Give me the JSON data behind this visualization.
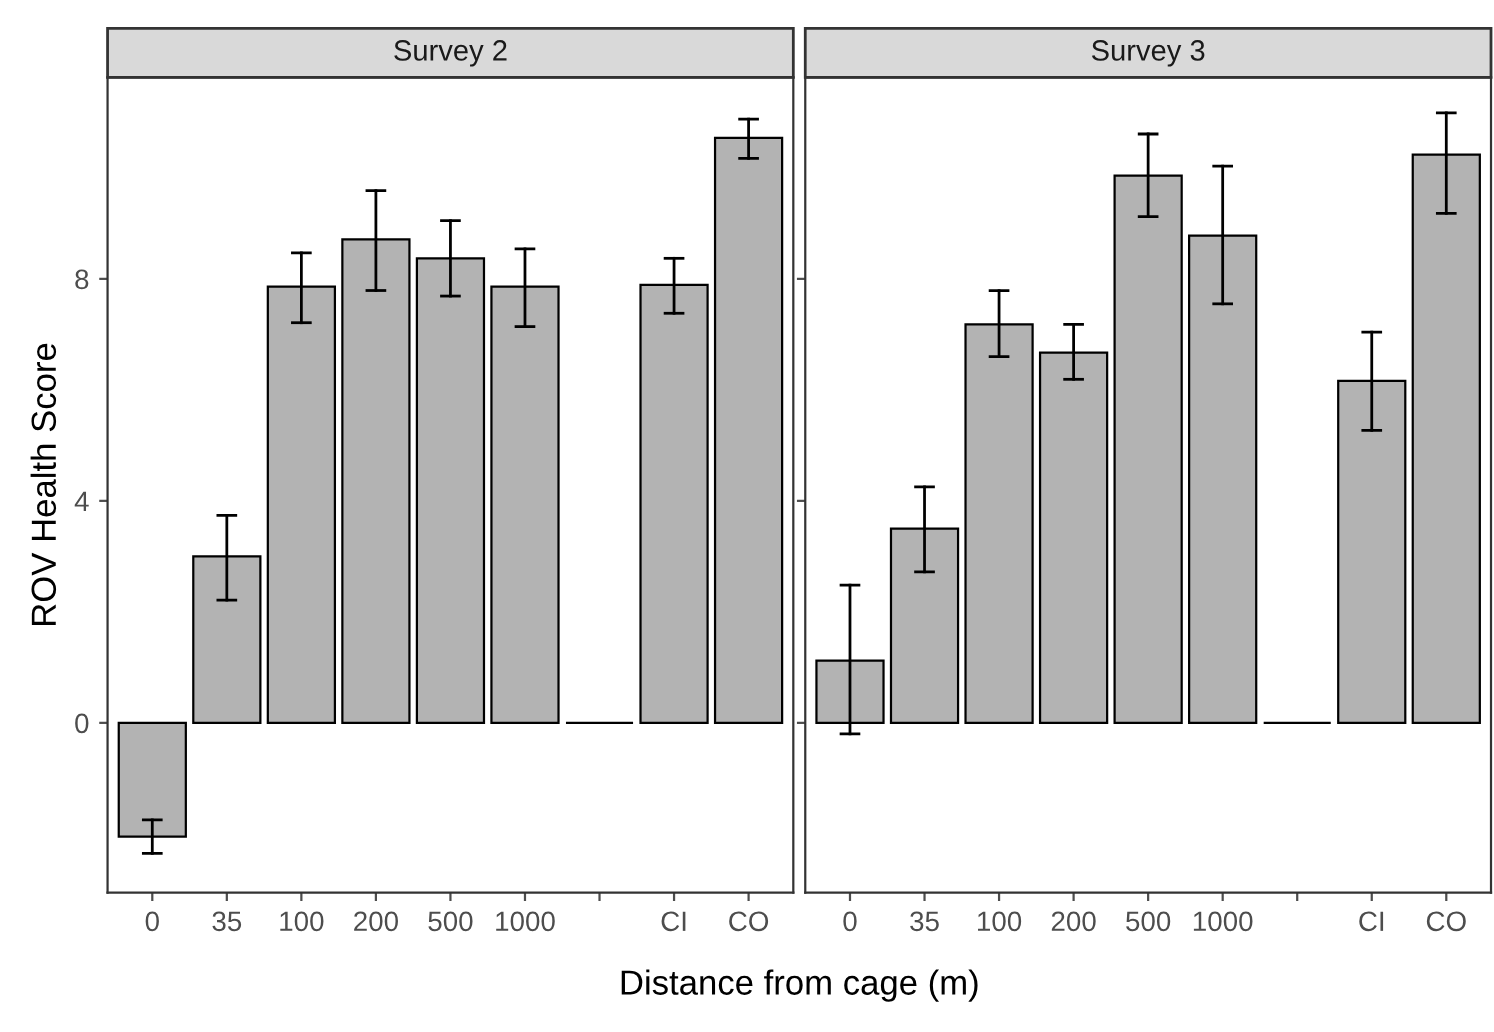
{
  "chart_data": [
    {
      "type": "bar",
      "title": "Survey 2",
      "xlabel": "Distance from cage (m)",
      "ylabel": "ROV Health Score",
      "categories": [
        "0",
        "35",
        "100",
        "200",
        "500",
        "1000",
        null,
        "CI",
        "CO"
      ],
      "values": [
        -2.05,
        3.0,
        7.86,
        8.71,
        8.37,
        7.86,
        0,
        7.89,
        10.54
      ],
      "errors": [
        [
          -2.35,
          -1.75
        ],
        [
          2.21,
          3.74
        ],
        [
          7.21,
          8.47
        ],
        [
          7.79,
          9.59
        ],
        [
          7.69,
          9.05
        ],
        [
          7.14,
          8.54
        ],
        null,
        [
          7.38,
          8.37
        ],
        [
          10.17,
          10.88
        ]
      ],
      "colors": [
        "#b3b3b3",
        "#b3b3b3",
        "#b3b3b3",
        "#b3b3b3",
        "#b3b3b3",
        "#b3b3b3",
        "#000000",
        "#b3b3b3",
        "#b3b3b3"
      ],
      "ylim": [
        -3.06,
        11.63
      ],
      "yticks": [
        0,
        4,
        8
      ],
      "grid": false
    },
    {
      "type": "bar",
      "title": "Survey 3",
      "categories": [
        "0",
        "35",
        "100",
        "200",
        "500",
        "1000",
        null,
        "CI",
        "CO"
      ],
      "values": [
        1.12,
        3.5,
        7.18,
        6.67,
        9.86,
        8.78,
        0,
        6.16,
        10.24
      ],
      "errors": [
        [
          -0.2,
          2.48
        ],
        [
          2.72,
          4.25
        ],
        [
          6.6,
          7.79
        ],
        [
          6.19,
          7.18
        ],
        [
          9.12,
          10.61
        ],
        [
          7.55,
          10.03
        ],
        null,
        [
          5.27,
          7.04
        ],
        [
          9.18,
          10.99
        ]
      ],
      "colors": [
        "#b3b3b3",
        "#b3b3b3",
        "#b3b3b3",
        "#b3b3b3",
        "#b3b3b3",
        "#b3b3b3",
        "#000000",
        "#b3b3b3",
        "#b3b3b3"
      ],
      "ylim": [
        -3.06,
        11.63
      ],
      "yticks": [
        0,
        4,
        8
      ],
      "grid": false,
      "tick_labels": "x"
    }
  ]
}
